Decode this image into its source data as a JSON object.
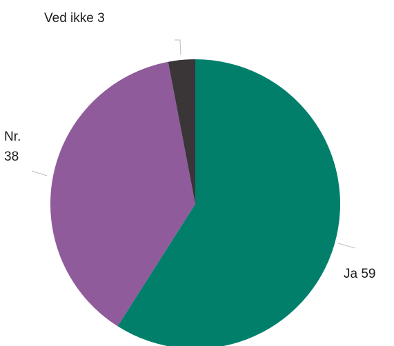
{
  "chart_data": {
    "type": "pie",
    "title": "",
    "slices": [
      {
        "label": "Ja",
        "value": 59,
        "display": "Ja 59",
        "color": "#017f6b"
      },
      {
        "label": "Nr.",
        "value": 38,
        "display": "Nr. 38",
        "color": "#8f5b9b"
      },
      {
        "label": "Ved ikke",
        "value": 3,
        "display": "Ved ikke 3",
        "color": "#3a3638"
      }
    ],
    "start_angle": "12 o'clock",
    "direction": "clockwise"
  },
  "labels": {
    "ja": "Ja 59",
    "nr_line1": "Nr.",
    "nr_line2": "38",
    "ved_ikke": "Ved ikke 3"
  }
}
